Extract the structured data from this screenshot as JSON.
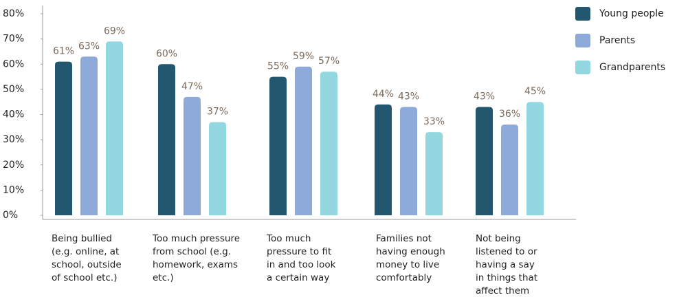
{
  "chart_data": {
    "type": "bar",
    "categories": [
      "Being bullied\n(e.g. online, at\nschool, outside\nof school etc.)",
      "Too much pressure\nfrom school (e.g.\nhomework, exams\n etc.)",
      "Too much\npressure to fit\nin and too look\na certain way",
      "Families not\nhaving enough\nmoney to live\ncomfortably",
      "Not being\nlistened to or\nhaving a say\nin things that\naffect them"
    ],
    "series": [
      {
        "name": "Young people",
        "color": "#23566f",
        "values": [
          61,
          60,
          55,
          44,
          43
        ],
        "value_labels": [
          "61%",
          "60%",
          "55%",
          "44%",
          "43%"
        ]
      },
      {
        "name": "Parents",
        "color": "#8eaadb",
        "values": [
          63,
          47,
          59,
          43,
          36
        ],
        "value_labels": [
          "63%",
          "47%",
          "59%",
          "43%",
          "36%"
        ]
      },
      {
        "name": "Grandparents",
        "color": "#93d8e0",
        "values": [
          69,
          37,
          57,
          33,
          45
        ],
        "value_labels": [
          "69%",
          "37%",
          "57%",
          "33%",
          "45%"
        ]
      }
    ],
    "ylim": [
      0,
      80
    ],
    "yticks": [
      {
        "value": 0,
        "label": "0%"
      },
      {
        "value": 10,
        "label": "10%"
      },
      {
        "value": 20,
        "label": "20%"
      },
      {
        "value": 30,
        "label": "30%"
      },
      {
        "value": 40,
        "label": "40%"
      },
      {
        "value": 50,
        "label": "50%"
      },
      {
        "value": 60,
        "label": "60%"
      },
      {
        "value": 70,
        "label": "70%"
      },
      {
        "value": 80,
        "label": "80%"
      }
    ],
    "legend": "top-right"
  }
}
